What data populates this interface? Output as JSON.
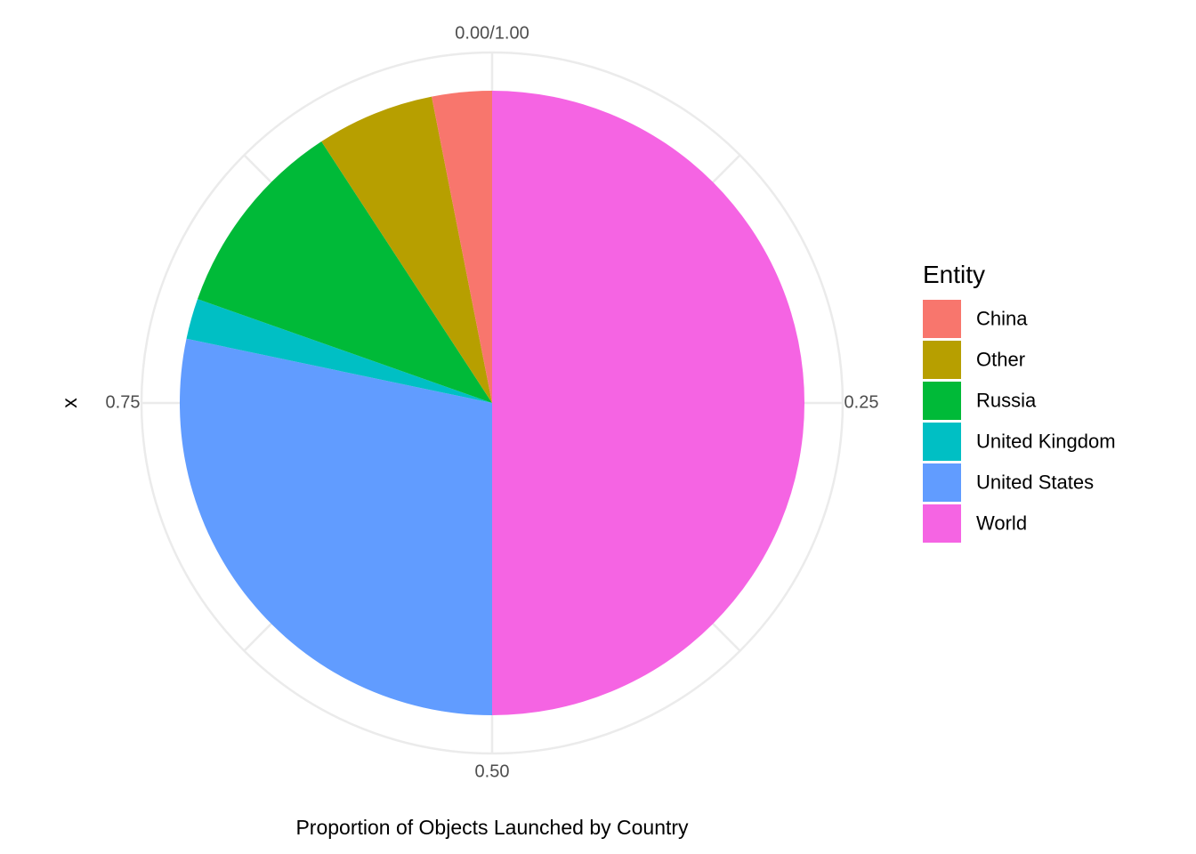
{
  "chart_data": {
    "type": "pie",
    "xlabel": "Proportion of Objects Launched by Country",
    "ylabel": "x",
    "theta_ticks": [
      {
        "value": 0,
        "label": "0.00/1.00"
      },
      {
        "value": 0.25,
        "label": "0.25"
      },
      {
        "value": 0.5,
        "label": "0.50"
      },
      {
        "value": 0.75,
        "label": "0.75"
      }
    ],
    "grid": true,
    "legend": {
      "title": "Entity",
      "placement": "right"
    },
    "slices": [
      {
        "label": "China",
        "value": 0.031,
        "color": "#F8766D"
      },
      {
        "label": "Other",
        "value": 0.061,
        "color": "#B79F00"
      },
      {
        "label": "Russia",
        "value": 0.104,
        "color": "#00BA38"
      },
      {
        "label": "United Kingdom",
        "value": 0.021,
        "color": "#00BFC4"
      },
      {
        "label": "United States",
        "value": 0.283,
        "color": "#619CFF"
      },
      {
        "label": "World",
        "value": 0.5,
        "color": "#F564E3"
      }
    ]
  }
}
